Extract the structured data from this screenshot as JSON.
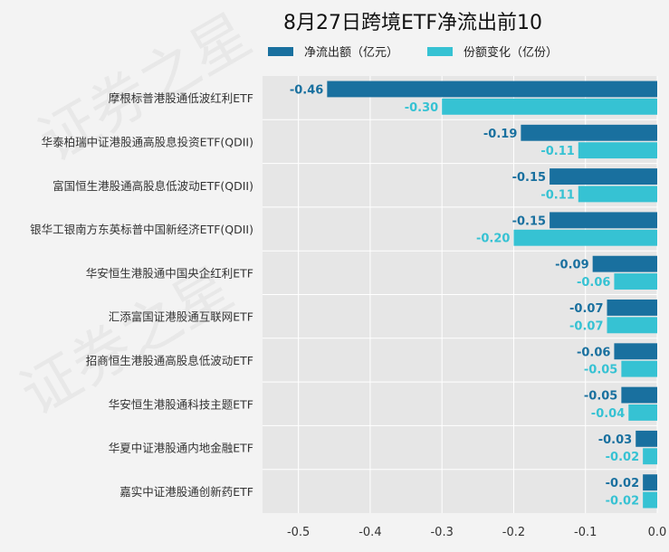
{
  "chart_data": {
    "type": "bar",
    "orientation": "horizontal",
    "title": "8月27日跨境ETF净流出前10",
    "categories": [
      "摩根标普港股通低波红利ETF",
      "华泰柏瑞中证港股通高股息投资ETF(QDII)",
      "富国恒生港股通高股息低波动ETF(QDII)",
      "银华工银南方东英标普中国新经济ETF(QDII)",
      "华安恒生港股通中国央企红利ETF",
      "汇添富国证港股通互联网ETF",
      "招商恒生港股通高股息低波动ETF",
      "华安恒生港股通科技主题ETF",
      "华夏中证港股通内地金融ETF",
      "嘉实中证港股通创新药ETF"
    ],
    "series": [
      {
        "name": "净流出额（亿元）",
        "color": "#19709f",
        "values": [
          -0.46,
          -0.19,
          -0.15,
          -0.15,
          -0.09,
          -0.07,
          -0.06,
          -0.05,
          -0.03,
          -0.02
        ]
      },
      {
        "name": "份额变化（亿份）",
        "color": "#36c2d3",
        "values": [
          -0.3,
          -0.11,
          -0.11,
          -0.2,
          -0.06,
          -0.07,
          -0.05,
          -0.04,
          -0.02,
          -0.02
        ]
      }
    ],
    "xlim": [
      -0.55,
      0.0
    ],
    "xticks": [
      -0.5,
      -0.4,
      -0.3,
      -0.2,
      -0.1,
      0.0
    ],
    "xtick_labels": [
      "-0.5",
      "-0.4",
      "-0.3",
      "-0.2",
      "-0.1",
      "0.0"
    ],
    "xlabel": "",
    "ylabel": "",
    "grid": true,
    "legend": "top",
    "data_labels": true
  },
  "watermark": "证券之星"
}
